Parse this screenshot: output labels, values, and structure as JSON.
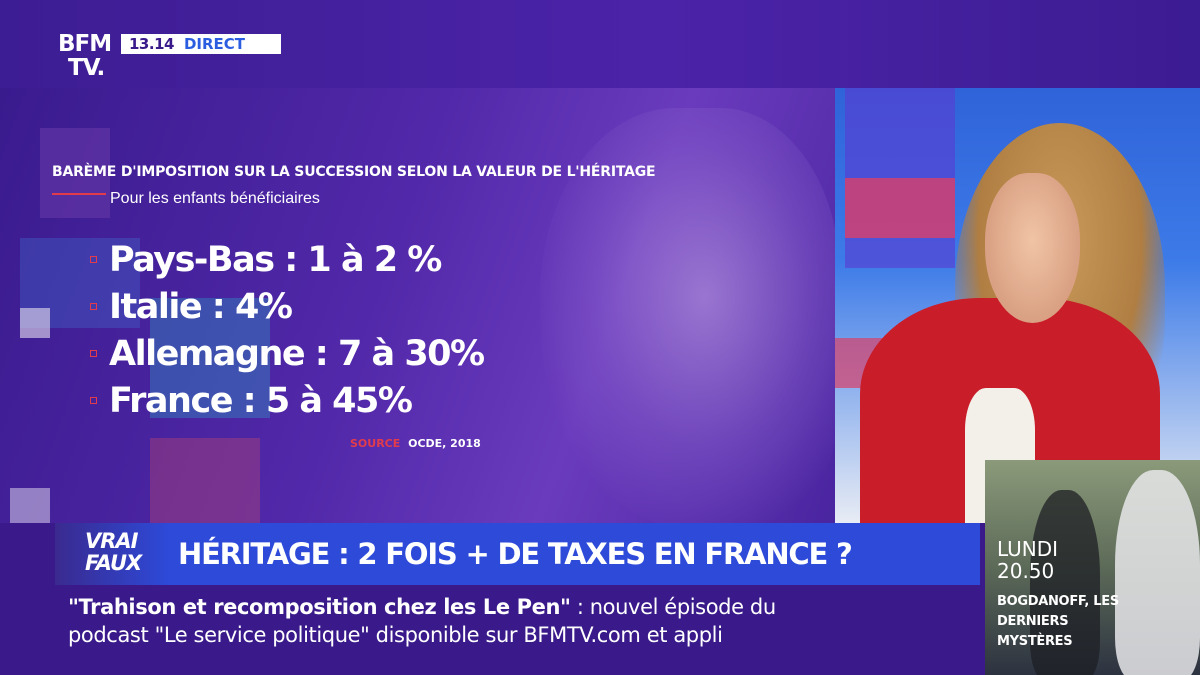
{
  "channel": {
    "logo_line1": "BFM",
    "logo_line2": "TV.",
    "time": "13.14",
    "live_label": "DIRECT"
  },
  "graphic": {
    "title": "BARÈME D'IMPOSITION SUR LA SUCCESSION SELON LA VALEUR DE L'HÉRITAGE",
    "subtitle": "Pour les enfants bénéficiaires",
    "items": [
      {
        "label": "Pays-Bas : 1 à 2 %"
      },
      {
        "label": "Italie : 4%"
      },
      {
        "label": "Allemagne : 7 à 30%"
      },
      {
        "label": "France : 5 à 45%"
      }
    ],
    "source_label": "SOURCE",
    "source_value": "OCDE, 2018",
    "accent_color": "#e23b4b"
  },
  "headline": {
    "tag_line1": "VRAI",
    "tag_line2": "FAUX",
    "text": "HÉRITAGE : 2 FOIS + DE TAXES EN FRANCE ?"
  },
  "ticker": {
    "quote": "\"Trahison et recomposition chez les Le Pen\"",
    "line1_rest": " :  nouvel épisode du",
    "line2": "podcast \"Le service politique\" disponible sur BFMTV.com et appli"
  },
  "promo": {
    "day": "LUNDI",
    "hour": "20.50",
    "title": "BOGDANOFF, LES DERNIERS MYSTÈRES"
  }
}
